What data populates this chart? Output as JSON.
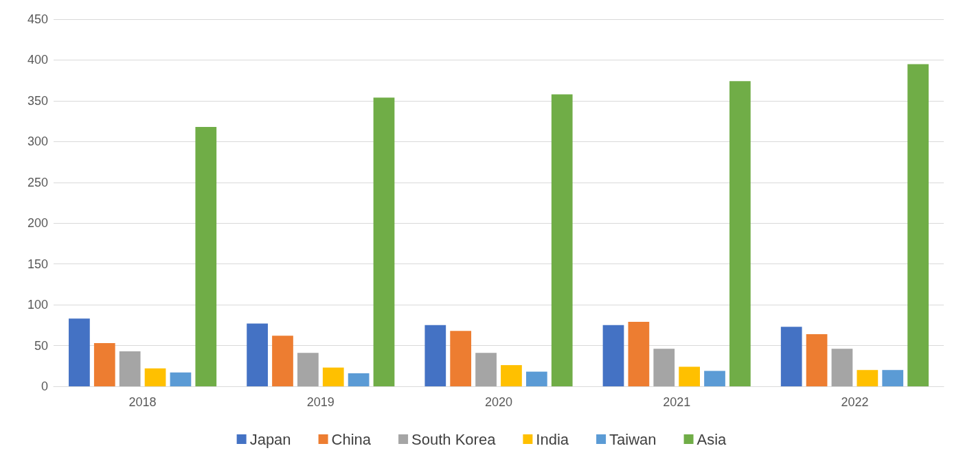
{
  "chart_data": {
    "type": "bar",
    "categories": [
      "2018",
      "2019",
      "2020",
      "2021",
      "2022"
    ],
    "series": [
      {
        "name": "Japan",
        "color": "#4472c4",
        "values": [
          83,
          77,
          75,
          75,
          73
        ]
      },
      {
        "name": "China",
        "color": "#ed7d31",
        "values": [
          53,
          62,
          68,
          79,
          64
        ]
      },
      {
        "name": "South Korea",
        "color": "#a5a5a5",
        "values": [
          43,
          41,
          41,
          46,
          46
        ]
      },
      {
        "name": "India",
        "color": "#ffc000",
        "values": [
          22,
          23,
          26,
          24,
          20
        ]
      },
      {
        "name": "Taiwan",
        "color": "#5b9bd5",
        "values": [
          17,
          16,
          18,
          19,
          20
        ]
      },
      {
        "name": "Asia",
        "color": "#70ad47",
        "values": [
          318,
          354,
          358,
          374,
          395
        ]
      }
    ],
    "ylim": [
      0,
      450
    ],
    "yticks": [
      0,
      50,
      100,
      150,
      200,
      250,
      300,
      350,
      400,
      450
    ],
    "grid": "y",
    "legend": "bottom"
  }
}
